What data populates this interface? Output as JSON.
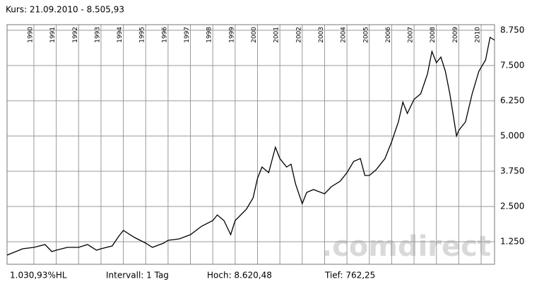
{
  "chart_data": {
    "type": "line",
    "title": "Kurs: 21.09.2010 - 8.505,93",
    "footer": [
      "1.030,93%HL",
      "Intervall: 1 Tag",
      "Hoch:  8.620,48",
      "Tief:  762,25"
    ],
    "watermark": ".comdirect",
    "x": [
      1988.8,
      1989.5,
      1990.0,
      1990.5,
      1990.8,
      1991.0,
      1991.5,
      1992.0,
      1992.4,
      1992.8,
      1993.0,
      1993.5,
      1993.8,
      1994.0,
      1994.5,
      1995.0,
      1995.3,
      1995.8,
      1996.0,
      1996.5,
      1997.0,
      1997.5,
      1998.0,
      1998.2,
      1998.5,
      1998.8,
      1999.0,
      1999.5,
      1999.8,
      2000.0,
      2000.2,
      2000.5,
      2000.6,
      2000.8,
      2001.0,
      2001.3,
      2001.5,
      2001.7,
      2002.0,
      2002.2,
      2002.5,
      2003.0,
      2003.3,
      2003.7,
      2004.0,
      2004.3,
      2004.6,
      2004.8,
      2005.0,
      2005.3,
      2005.7,
      2006.0,
      2006.3,
      2006.5,
      2006.7,
      2007.0,
      2007.3,
      2007.6,
      2007.8,
      2008.0,
      2008.2,
      2008.4,
      2008.6,
      2008.9,
      2009.0,
      2009.3,
      2009.6,
      2009.9,
      2010.2,
      2010.4,
      2010.6
    ],
    "series": [
      {
        "color": "#000000",
        "values": [
          775,
          1000,
          1050,
          1150,
          900,
          950,
          1050,
          1050,
          1150,
          950,
          1000,
          1100,
          1450,
          1650,
          1400,
          1200,
          1050,
          1200,
          1300,
          1350,
          1500,
          1800,
          2000,
          2200,
          2000,
          1500,
          2000,
          2400,
          2800,
          3500,
          3900,
          3700,
          4000,
          4600,
          4200,
          3900,
          4000,
          3300,
          2600,
          3000,
          3100,
          2950,
          3200,
          3400,
          3700,
          4100,
          4200,
          3600,
          3600,
          3800,
          4200,
          4800,
          5500,
          6200,
          5800,
          6300,
          6500,
          7200,
          8000,
          7600,
          7800,
          7300,
          6500,
          5000,
          5200,
          5500,
          6500,
          7300,
          7700,
          8500,
          8400
        ]
      }
    ],
    "xlim": [
      1988.8,
      2010.6
    ],
    "xticks": [
      1990,
      1991,
      1992,
      1993,
      1994,
      1995,
      1996,
      1997,
      1998,
      1999,
      2000,
      2001,
      2002,
      2003,
      2004,
      2005,
      2006,
      2007,
      2008,
      2009,
      2010
    ],
    "ylim": [
      450,
      8950
    ],
    "yticks": [
      {
        "value": 1250,
        "label": "1.250"
      },
      {
        "value": 2500,
        "label": "2.500"
      },
      {
        "value": 3750,
        "label": "3.750"
      },
      {
        "value": 5000,
        "label": "5.000"
      },
      {
        "value": 6250,
        "label": "6.250"
      },
      {
        "value": 7500,
        "label": "7.500"
      },
      {
        "value": 8750,
        "label": "8.750"
      }
    ],
    "grid": true
  }
}
